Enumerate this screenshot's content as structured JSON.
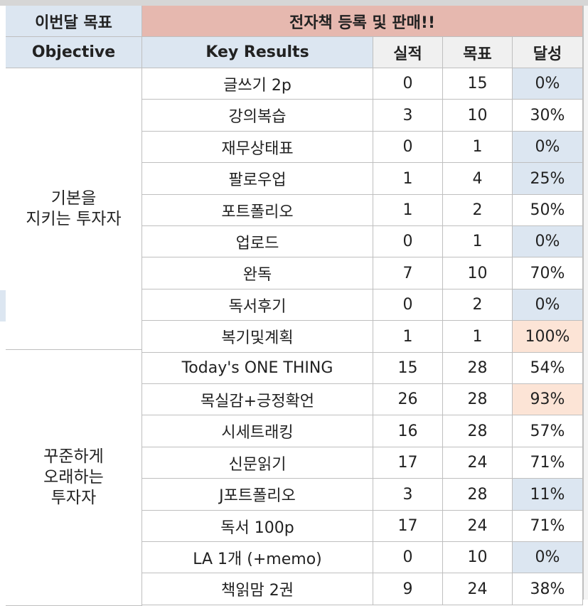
{
  "header": {
    "month_goal_label": "이번달 목표",
    "month_goal_value": "전자책 등록 및 판매!!",
    "col_objective": "Objective",
    "col_key_results": "Key Results",
    "col_actual": "실적",
    "col_target": "목표",
    "col_achievement": "달성"
  },
  "objectives": [
    {
      "lines": [
        "기본을",
        "지키는 투자자"
      ]
    },
    {
      "lines": [
        "꾸준하게",
        "오래하는",
        "투자자"
      ]
    }
  ],
  "rows": [
    {
      "kr": "글쓰기 2p",
      "actual": "0",
      "target": "15",
      "rate": "0%",
      "highlight": "blue"
    },
    {
      "kr": "강의복습",
      "actual": "3",
      "target": "10",
      "rate": "30%",
      "highlight": "none"
    },
    {
      "kr": "재무상태표",
      "actual": "0",
      "target": "1",
      "rate": "0%",
      "highlight": "blue"
    },
    {
      "kr": "팔로우업",
      "actual": "1",
      "target": "4",
      "rate": "25%",
      "highlight": "blue"
    },
    {
      "kr": "포트폴리오",
      "actual": "1",
      "target": "2",
      "rate": "50%",
      "highlight": "none"
    },
    {
      "kr": "업로드",
      "actual": "0",
      "target": "1",
      "rate": "0%",
      "highlight": "blue"
    },
    {
      "kr": "완독",
      "actual": "7",
      "target": "10",
      "rate": "70%",
      "highlight": "none"
    },
    {
      "kr": "독서후기",
      "actual": "0",
      "target": "2",
      "rate": "0%",
      "highlight": "blue"
    },
    {
      "kr": "복기및계획",
      "actual": "1",
      "target": "1",
      "rate": "100%",
      "highlight": "peach"
    },
    {
      "kr": "Today's ONE THING",
      "actual": "15",
      "target": "28",
      "rate": "54%",
      "highlight": "none"
    },
    {
      "kr": "목실감+긍정확언",
      "actual": "26",
      "target": "28",
      "rate": "93%",
      "highlight": "peach"
    },
    {
      "kr": "시세트래킹",
      "actual": "16",
      "target": "28",
      "rate": "57%",
      "highlight": "none"
    },
    {
      "kr": "신문읽기",
      "actual": "17",
      "target": "24",
      "rate": "71%",
      "highlight": "none"
    },
    {
      "kr": "J포트폴리오",
      "actual": "3",
      "target": "28",
      "rate": "11%",
      "highlight": "blue"
    },
    {
      "kr": "독서 100p",
      "actual": "17",
      "target": "24",
      "rate": "71%",
      "highlight": "none"
    },
    {
      "kr": "LA 1개 (+memo)",
      "actual": "0",
      "target": "10",
      "rate": "0%",
      "highlight": "blue"
    },
    {
      "kr": "책읽맘 2권",
      "actual": "9",
      "target": "24",
      "rate": "38%",
      "highlight": "none"
    }
  ],
  "colors": {
    "header_blue": "#dce6f1",
    "header_pink": "#e6b8af",
    "header_gray": "#f0f0f0",
    "low_rate_blue": "#dce6f1",
    "high_rate_peach": "#fce4d6",
    "grid": "#bfbfbf"
  }
}
